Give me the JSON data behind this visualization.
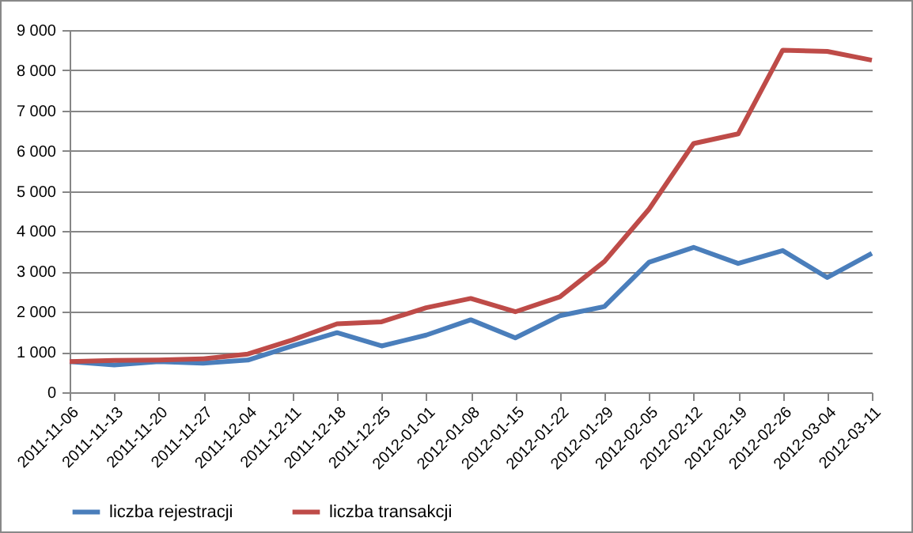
{
  "chart_data": {
    "type": "line",
    "categories": [
      "2011-11-06",
      "2011-11-13",
      "2011-11-20",
      "2011-11-27",
      "2011-12-04",
      "2011-12-11",
      "2011-12-18",
      "2011-12-25",
      "2012-01-01",
      "2012-01-08",
      "2012-01-15",
      "2012-01-22",
      "2012-01-29",
      "2012-02-05",
      "2012-02-12",
      "2012-02-19",
      "2012-02-26",
      "2012-03-04",
      "2012-03-11"
    ],
    "series": [
      {
        "name": "liczba rejestracji",
        "color": "#4a7ebb",
        "values": [
          760,
          680,
          760,
          720,
          800,
          1150,
          1480,
          1150,
          1420,
          1800,
          1350,
          1900,
          2130,
          3230,
          3600,
          3200,
          3520,
          2850,
          3450
        ]
      },
      {
        "name": "liczba transakcji",
        "color": "#be4b48",
        "values": [
          760,
          790,
          800,
          830,
          950,
          1300,
          1700,
          1750,
          2100,
          2330,
          2000,
          2370,
          3250,
          4550,
          6180,
          6420,
          8500,
          8470,
          8250
        ]
      }
    ],
    "ylim": [
      0,
      9000
    ],
    "yticks": [
      0,
      {
        "value": 1000,
        "label": "1 000"
      },
      {
        "value": 2000,
        "label": "2 000"
      },
      {
        "value": 3000,
        "label": "3 000"
      },
      {
        "value": 4000,
        "label": "4 000"
      },
      {
        "value": 5000,
        "label": "5 000"
      },
      {
        "value": 6000,
        "label": "6 000"
      },
      {
        "value": 7000,
        "label": "7 000"
      },
      {
        "value": 8000,
        "label": "8 000"
      },
      {
        "value": 9000,
        "label": "9 000"
      }
    ],
    "grid": "y",
    "legend": "bottom",
    "marker": "none",
    "line_style": "solid"
  }
}
